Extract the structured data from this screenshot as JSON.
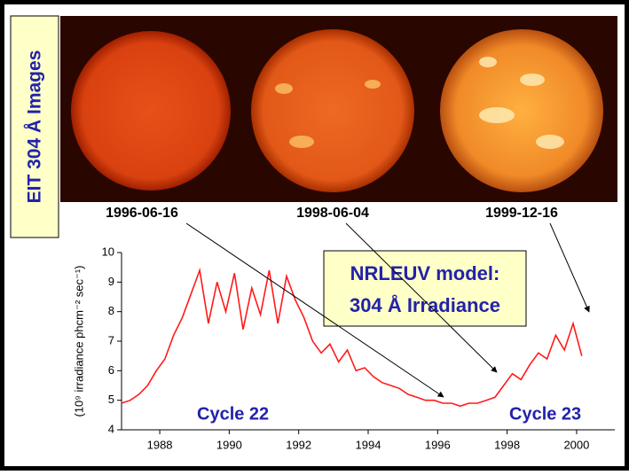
{
  "images": {
    "label": "EIT 304 Å Images",
    "dates": [
      "1996-06-16",
      "1998-06-04",
      "1999-12-16"
    ]
  },
  "chart_data": {
    "type": "line",
    "ylabel": "(10⁹ irradiance phcm⁻² sec⁻¹)",
    "annotations": {
      "model": [
        "NRLEUV model:",
        "304 Å Irradiance"
      ],
      "cycles": [
        "Cycle 22",
        "Cycle 23"
      ]
    },
    "x": [
      1986.9,
      1987.15,
      1987.4,
      1987.65,
      1987.9,
      1988.15,
      1988.4,
      1988.65,
      1988.9,
      1989.15,
      1989.4,
      1989.65,
      1989.9,
      1990.15,
      1990.4,
      1990.65,
      1990.9,
      1991.15,
      1991.4,
      1991.65,
      1991.9,
      1992.15,
      1992.4,
      1992.65,
      1992.9,
      1993.15,
      1993.4,
      1993.65,
      1993.9,
      1994.15,
      1994.4,
      1994.65,
      1994.9,
      1995.15,
      1995.4,
      1995.65,
      1995.9,
      1996.15,
      1996.4,
      1996.65,
      1996.9,
      1997.15,
      1997.4,
      1997.65,
      1997.9,
      1998.15,
      1998.4,
      1998.65,
      1998.9,
      1999.15,
      1999.4,
      1999.65,
      1999.9,
      2000.15
    ],
    "series": [
      {
        "color": "#ff1a1a",
        "values": [
          4.9,
          5.0,
          5.2,
          5.5,
          6.0,
          6.4,
          7.2,
          7.8,
          8.6,
          9.4,
          7.6,
          9.0,
          8.0,
          9.3,
          7.4,
          8.8,
          7.9,
          9.4,
          7.6,
          9.2,
          8.4,
          7.8,
          7.0,
          6.6,
          6.9,
          6.3,
          6.7,
          6.0,
          6.1,
          5.8,
          5.6,
          5.5,
          5.4,
          5.2,
          5.1,
          5.0,
          5.0,
          4.9,
          4.9,
          4.8,
          4.9,
          4.9,
          5.0,
          5.1,
          5.5,
          5.9,
          5.7,
          6.2,
          6.6,
          6.4,
          7.2,
          6.7,
          7.6,
          6.5
        ]
      }
    ],
    "xlim": [
      1986.9,
      2001.1
    ],
    "ylim": [
      4,
      10
    ],
    "xticks": [
      1988,
      1990,
      1992,
      1994,
      1996,
      1998,
      2000
    ],
    "yticks": [
      4,
      5,
      6,
      7,
      8,
      9,
      10
    ]
  }
}
